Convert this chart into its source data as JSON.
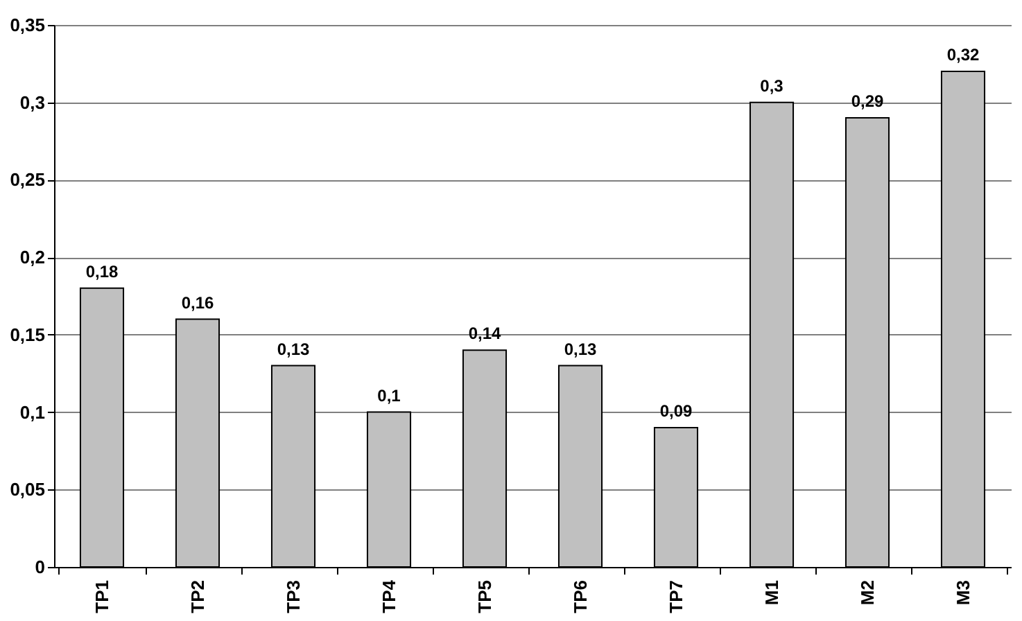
{
  "chart_data": {
    "type": "bar",
    "categories": [
      "TP1",
      "TP2",
      "TP3",
      "TP4",
      "TP5",
      "TP6",
      "TP7",
      "M1",
      "M2",
      "M3"
    ],
    "values": [
      0.18,
      0.16,
      0.13,
      0.1,
      0.14,
      0.13,
      0.09,
      0.3,
      0.29,
      0.32
    ],
    "value_labels": [
      "0,18",
      "0,16",
      "0,13",
      "0,1",
      "0,14",
      "0,13",
      "0,09",
      "0,3",
      "0,29",
      "0,32"
    ],
    "color": "#c0c0c0",
    "ylim": [
      0,
      0.35
    ],
    "yticks": [
      0,
      {
        "value": 0.05,
        "label": "0,05"
      },
      {
        "value": 0.1,
        "label": "0,1"
      },
      {
        "value": 0.15,
        "label": "0,15"
      },
      {
        "value": 0.2,
        "label": "0,2"
      },
      {
        "value": 0.25,
        "label": "0,25"
      },
      {
        "value": 0.3,
        "label": "0,3"
      },
      {
        "value": 0.35,
        "label": "0,35"
      }
    ],
    "grid": "y"
  }
}
